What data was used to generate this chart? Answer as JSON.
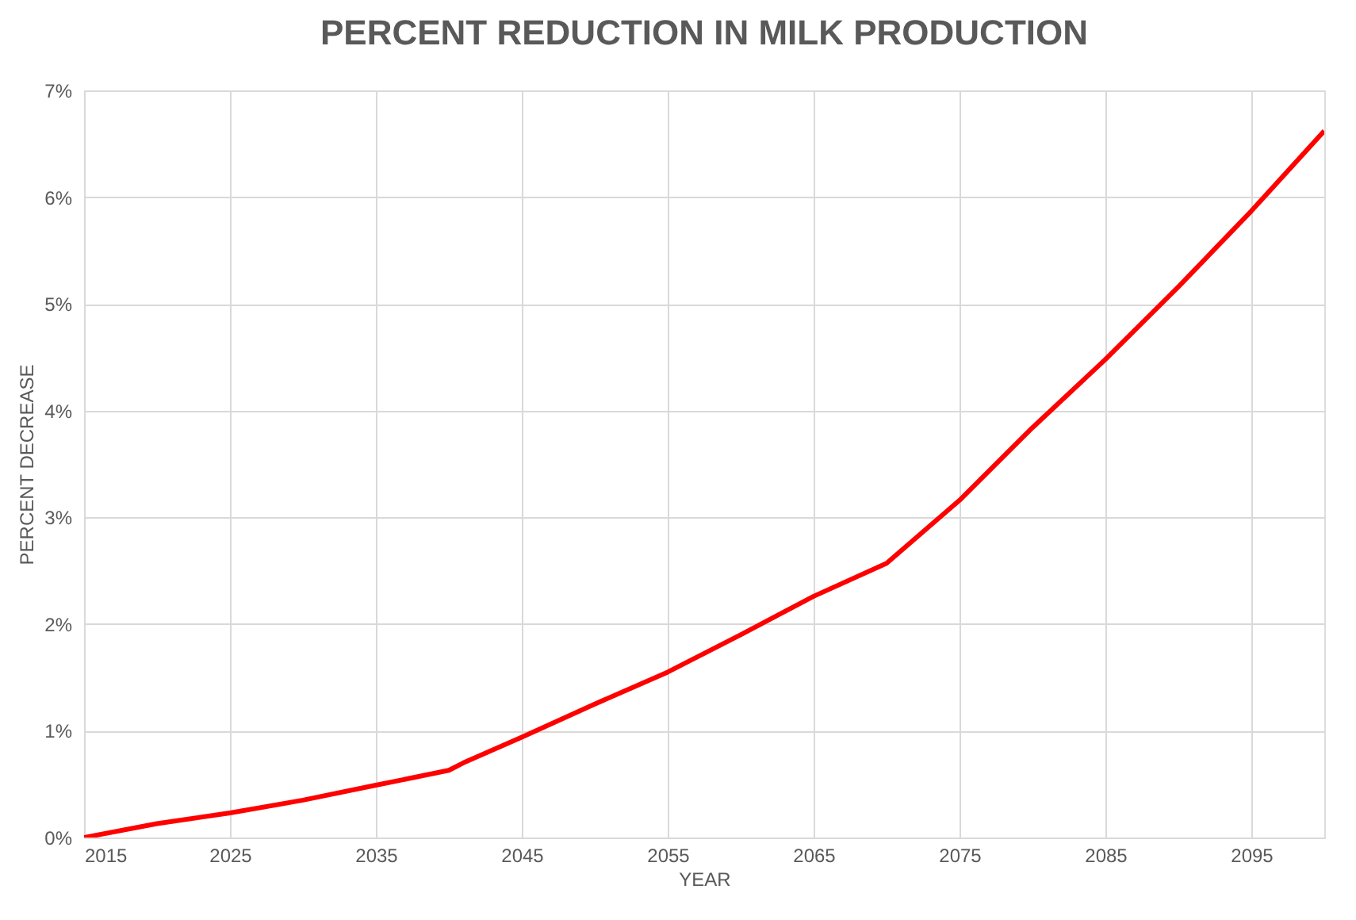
{
  "chart_data": {
    "type": "line",
    "title": "PERCENT REDUCTION IN MILK PRODUCTION",
    "xlabel": "YEAR",
    "ylabel": "PERCENT DECREASE",
    "x": [
      2015,
      2020,
      2025,
      2030,
      2035,
      2040,
      2041,
      2045,
      2050,
      2055,
      2060,
      2065,
      2070,
      2075,
      2080,
      2085,
      2090,
      2095,
      2100
    ],
    "series": [
      {
        "color": "#ff0000",
        "values": [
          0,
          0.13,
          0.23,
          0.35,
          0.49,
          0.63,
          0.7,
          0.94,
          1.25,
          1.55,
          1.9,
          2.26,
          2.57,
          3.16,
          3.84,
          4.48,
          5.16,
          5.87,
          6.62
        ]
      }
    ],
    "xlim": [
      2015,
      2100
    ],
    "xticks": [
      2015,
      2025,
      2035,
      2045,
      2055,
      2065,
      2075,
      2085,
      2095
    ],
    "ylim": [
      0,
      7
    ],
    "yticks": [
      {
        "value": 0,
        "label": "0%"
      },
      {
        "value": 1,
        "label": "1%"
      },
      {
        "value": 2,
        "label": "2%"
      },
      {
        "value": 3,
        "label": "3%"
      },
      {
        "value": 4,
        "label": "4%"
      },
      {
        "value": 5,
        "label": "5%"
      },
      {
        "value": 6,
        "label": "6%"
      },
      {
        "value": 7,
        "label": "7%"
      }
    ],
    "grid": true,
    "marker": "none",
    "line_style": "solid"
  }
}
